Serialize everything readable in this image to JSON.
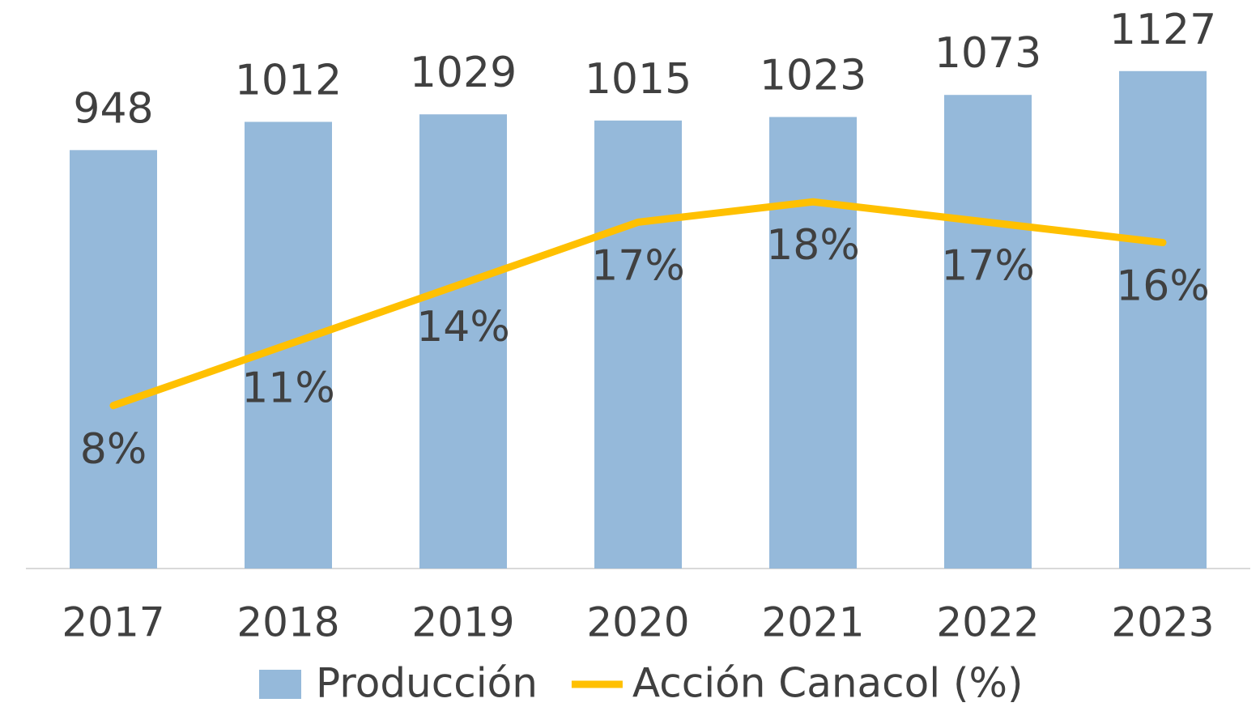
{
  "chart_data": {
    "type": "bar",
    "categories": [
      "2017",
      "2018",
      "2019",
      "2020",
      "2021",
      "2022",
      "2023"
    ],
    "series": [
      {
        "name": "Producción",
        "type": "bar",
        "color": "#95b9da",
        "values": [
          948,
          1012,
          1029,
          1015,
          1023,
          1073,
          1127
        ]
      },
      {
        "name": "Acción Canacol (%)",
        "type": "line",
        "axis": "y2",
        "color": "#ffc000",
        "values": [
          8,
          11,
          14,
          17,
          18,
          17,
          16
        ],
        "value_labels": [
          "8%",
          "11%",
          "14%",
          "17%",
          "18%",
          "17%",
          "16%"
        ]
      }
    ],
    "ylim": [
      0,
      1200
    ],
    "y2lim": [
      0,
      26
    ],
    "legend": "bottom"
  }
}
